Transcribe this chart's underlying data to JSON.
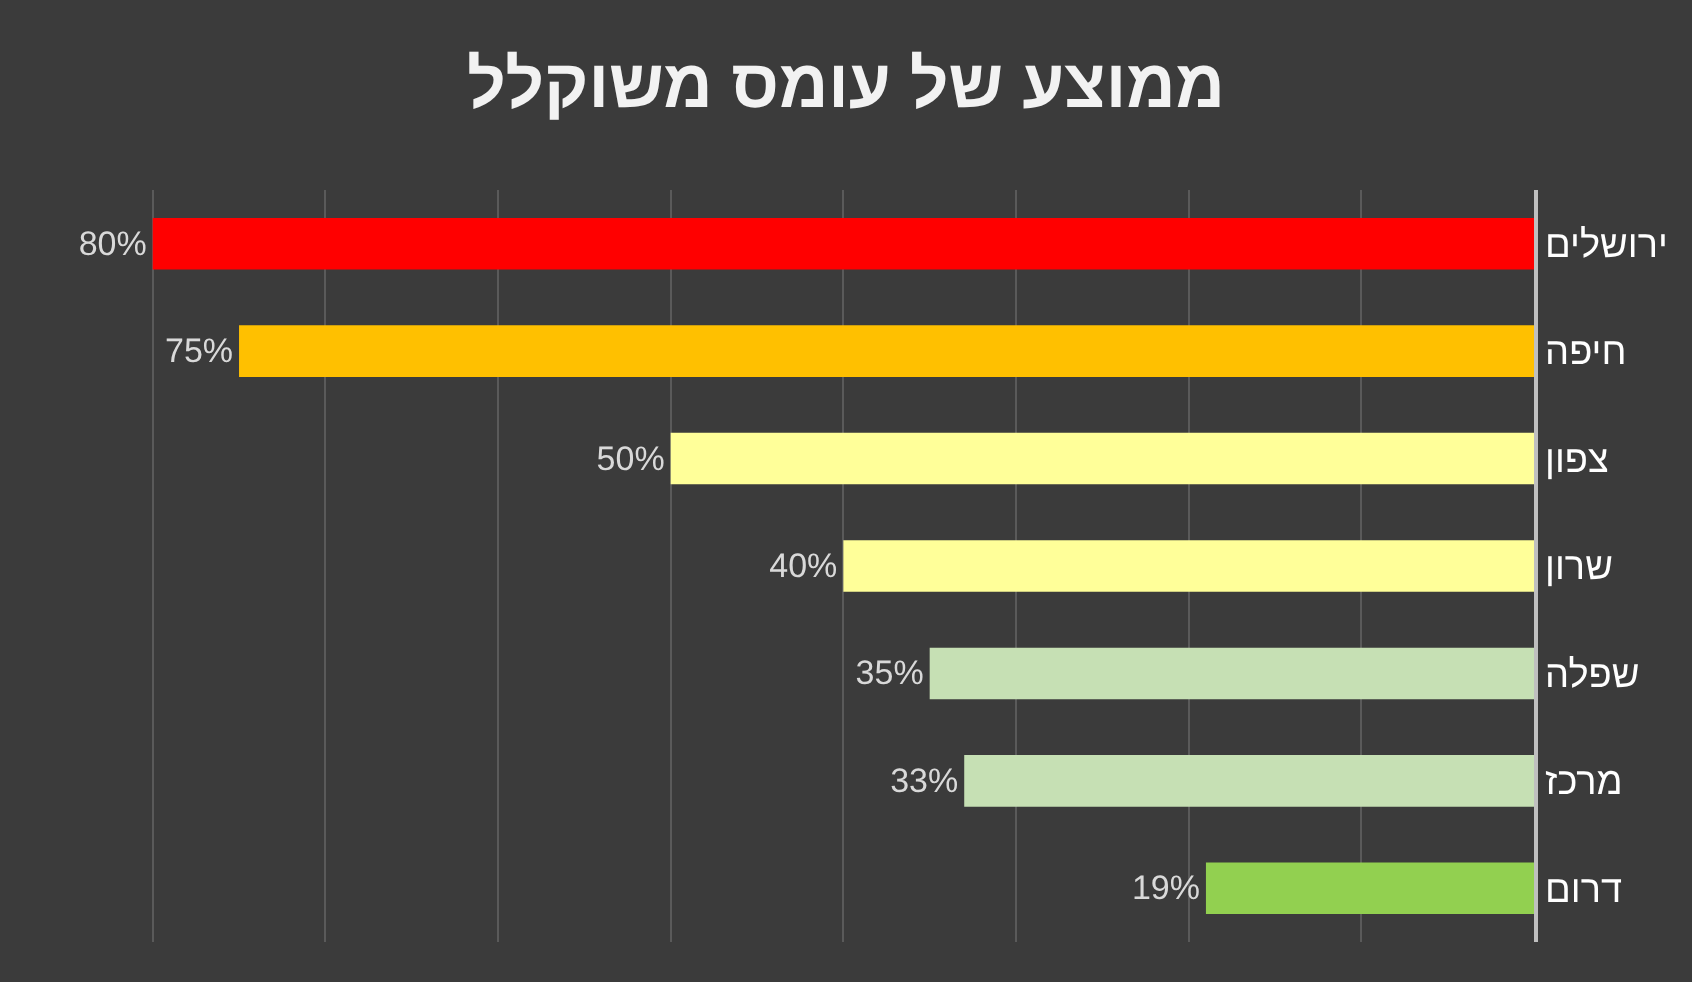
{
  "chart_data": {
    "type": "bar",
    "orientation": "horizontal",
    "title": "ממוצע של עומס משוקלל",
    "categories": [
      "ירושלים",
      "חיפה",
      "צפון",
      "שרון",
      "שפלה",
      "מרכז",
      "דרום"
    ],
    "values": [
      80,
      75,
      50,
      40,
      35,
      33,
      19
    ],
    "value_labels": [
      "80%",
      "75%",
      "50%",
      "40%",
      "35%",
      "33%",
      "19%"
    ],
    "colors": [
      "#ff0000",
      "#ffc000",
      "#ffff99",
      "#ffff99",
      "#c6e0b4",
      "#c6e0b4",
      "#92d050"
    ],
    "grid": "x",
    "legend": false,
    "tick_labels": "y"
  }
}
